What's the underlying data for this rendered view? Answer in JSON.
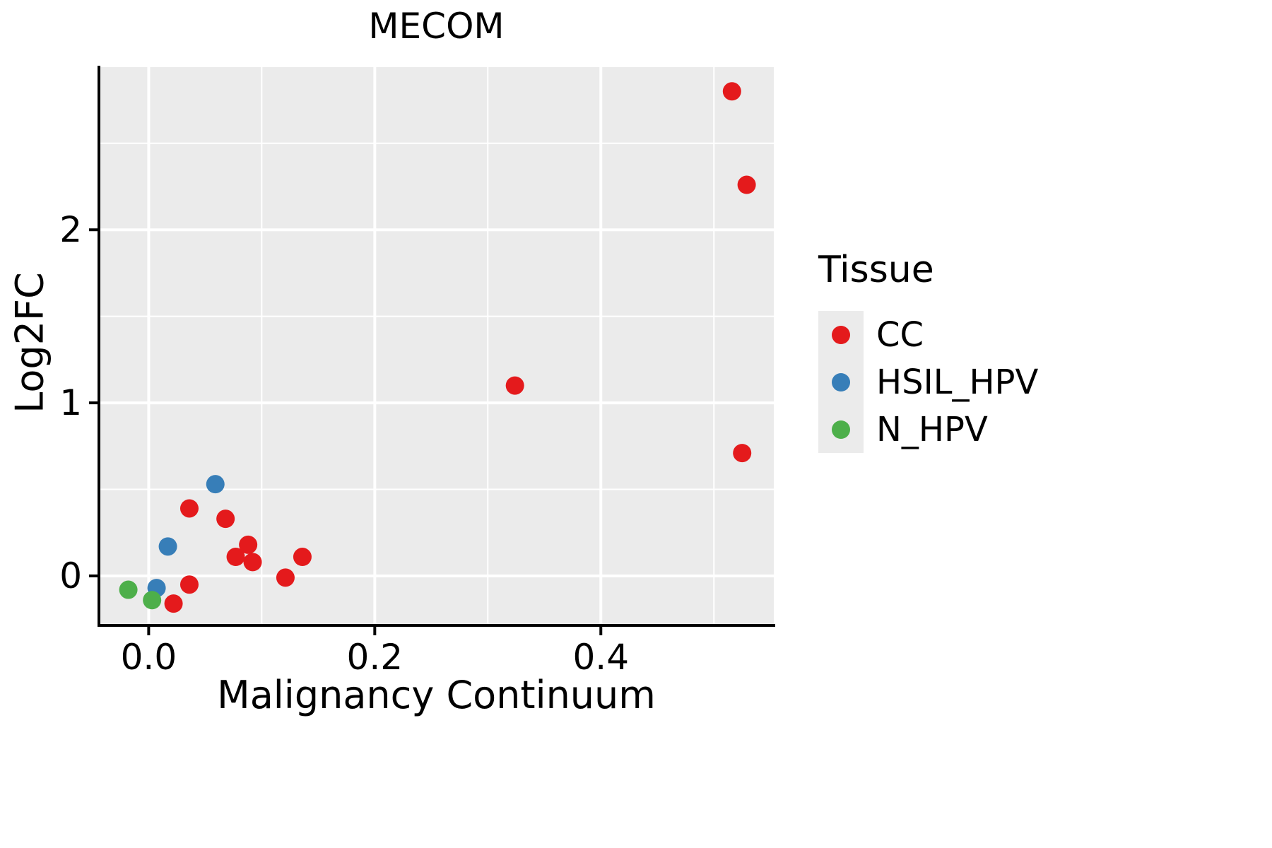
{
  "chart_data": {
    "type": "scatter",
    "title": "MECOM",
    "xlabel": "Malignancy Continuum",
    "ylabel": "Log2FC",
    "legend_title": "Tissue",
    "xlim": [
      -0.044,
      0.553
    ],
    "ylim": [
      -0.286,
      2.94
    ],
    "x_ticks": {
      "values": [
        0.0,
        0.2,
        0.4
      ],
      "labels": [
        "0.0",
        "0.2",
        "0.4"
      ]
    },
    "y_ticks": {
      "values": [
        0,
        1,
        2
      ],
      "labels": [
        "0",
        "1",
        "2"
      ]
    },
    "x_minor": [
      0.1,
      0.3,
      0.5
    ],
    "y_minor": [
      0.5,
      1.5,
      2.5
    ],
    "grid": true,
    "legend_position": "right",
    "panel_bg": "#EBEBEB",
    "grid_color": "#FFFFFF",
    "axis_color": "#000000",
    "point_radius": 13,
    "series": [
      {
        "name": "CC",
        "color": "#E41A1C",
        "points": [
          [
            0.516,
            2.8
          ],
          [
            0.529,
            2.26
          ],
          [
            0.525,
            0.71
          ],
          [
            0.324,
            1.1
          ],
          [
            0.036,
            0.39
          ],
          [
            0.068,
            0.33
          ],
          [
            0.088,
            0.18
          ],
          [
            0.077,
            0.11
          ],
          [
            0.092,
            0.08
          ],
          [
            0.136,
            0.11
          ],
          [
            0.121,
            -0.01
          ],
          [
            0.036,
            -0.05
          ],
          [
            0.022,
            -0.16
          ]
        ]
      },
      {
        "name": "HSIL_HPV",
        "color": "#377EB8",
        "points": [
          [
            0.059,
            0.53
          ],
          [
            0.017,
            0.17
          ],
          [
            0.007,
            -0.07
          ]
        ]
      },
      {
        "name": "N_HPV",
        "color": "#4DAF4A",
        "points": [
          [
            -0.018,
            -0.08
          ],
          [
            0.003,
            -0.14
          ]
        ]
      }
    ]
  }
}
